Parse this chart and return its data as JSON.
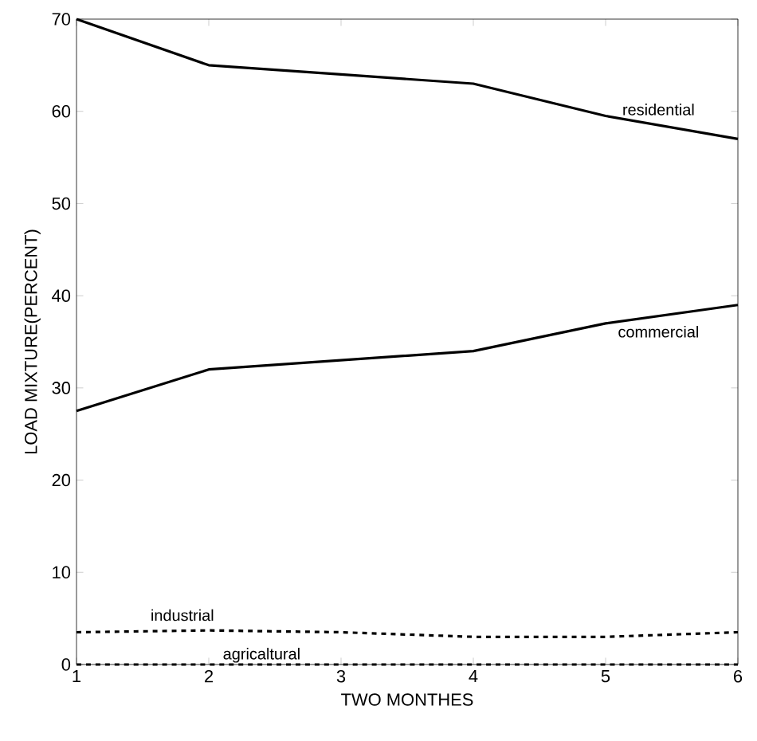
{
  "chart_data": {
    "type": "line",
    "xlabel": "TWO MONTHES",
    "ylabel": "LOAD MIXTURE(PERCENT)",
    "x": [
      1,
      2,
      3,
      4,
      5,
      6
    ],
    "xlim": [
      1,
      6
    ],
    "ylim": [
      0,
      70
    ],
    "xticks": [
      1,
      2,
      3,
      4,
      5,
      6
    ],
    "yticks": [
      0,
      10,
      20,
      30,
      40,
      50,
      60,
      70
    ],
    "grid": false,
    "marker": "none",
    "series": [
      {
        "name": "residential",
        "color": "#000000",
        "line_style": "solid",
        "values": [
          70,
          65,
          64,
          63,
          59.5,
          57
        ]
      },
      {
        "name": "commercial",
        "color": "#000000",
        "line_style": "solid",
        "values": [
          27.5,
          32,
          33,
          34,
          37,
          39
        ]
      },
      {
        "name": "industrial",
        "color": "#000000",
        "line_style": "dashed",
        "values": [
          3.5,
          3.7,
          3.5,
          3,
          3,
          3.5
        ]
      },
      {
        "name": "agricaltural",
        "color": "#000000",
        "line_style": "dashed",
        "values": [
          0,
          0,
          0,
          0,
          0,
          0
        ]
      }
    ]
  }
}
